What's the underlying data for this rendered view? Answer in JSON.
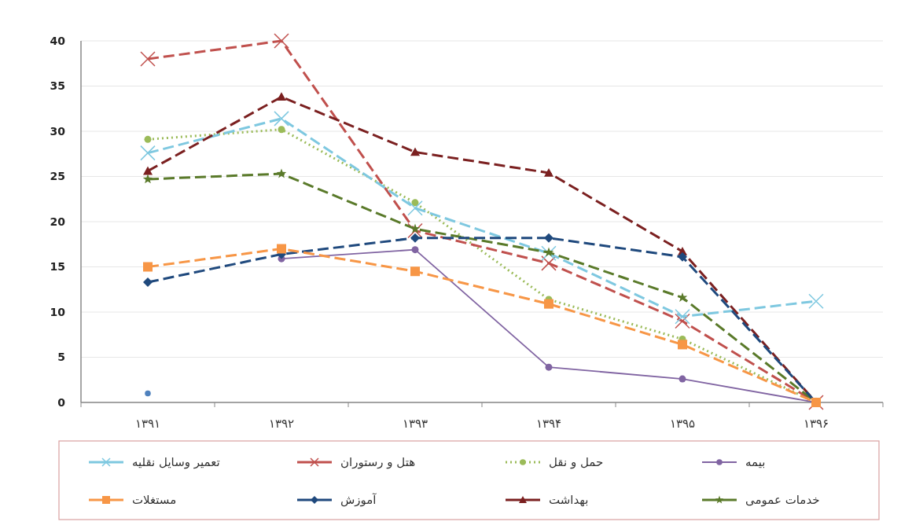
{
  "chart_data": {
    "type": "line",
    "categories": [
      "۱۳۹۱",
      "۱۳۹۲",
      "۱۳۹۳",
      "۱۳۹۴",
      "۱۳۹۵",
      "۱۳۹۶"
    ],
    "ylim": [
      0,
      40
    ],
    "yticks": [
      0,
      5,
      10,
      15,
      20,
      25,
      30,
      35,
      40
    ],
    "grid": "y",
    "legend": "bottom",
    "series": [
      {
        "name": "بیمه",
        "color": "#8064a2",
        "marker": "circle",
        "line_style": "solid",
        "values": [
          null,
          15.9,
          16.9,
          3.9,
          2.6,
          0
        ]
      },
      {
        "name": "حمل و نقل",
        "color": "#9bbb59",
        "marker": "circle",
        "line_style": "dotted",
        "values": [
          29.1,
          30.2,
          22.1,
          11.4,
          7,
          0
        ]
      },
      {
        "name": "هتل و رستوران",
        "color": "#c0504d",
        "marker": "cross",
        "line_style": "dashed",
        "values": [
          38,
          40,
          19,
          15.4,
          9,
          0
        ]
      },
      {
        "name": "تعمیر وسایل نقلیه",
        "color": "#7ec8e0",
        "marker": "cross",
        "line_style": "dashed",
        "values": [
          27.6,
          31.4,
          21.5,
          16.5,
          9.5,
          11.2
        ]
      },
      {
        "name": "خدمات عمومی",
        "color": "#5a7a2a",
        "marker": "star",
        "line_style": "dashed",
        "values": [
          24.7,
          25.3,
          19.2,
          16.6,
          11.6,
          0
        ]
      },
      {
        "name": "بهداشت",
        "color": "#7b2020",
        "marker": "triangle",
        "line_style": "dashed",
        "values": [
          25.6,
          33.8,
          27.7,
          25.4,
          16.7,
          0
        ]
      },
      {
        "name": "آموزش",
        "color": "#1f497d",
        "marker": "diamond",
        "line_style": "dashed",
        "values": [
          13.3,
          16.4,
          18.2,
          18.2,
          16.1,
          0
        ]
      },
      {
        "name": "مستغلات",
        "color": "#f79646",
        "marker": "square",
        "line_style": "dashed",
        "values": [
          15,
          17,
          14.5,
          10.9,
          6.4,
          0
        ]
      },
      {
        "type": "scatter",
        "color": "#4f81bd",
        "marker": "circle",
        "values": [
          1,
          null,
          null,
          null,
          null,
          null
        ]
      }
    ]
  }
}
